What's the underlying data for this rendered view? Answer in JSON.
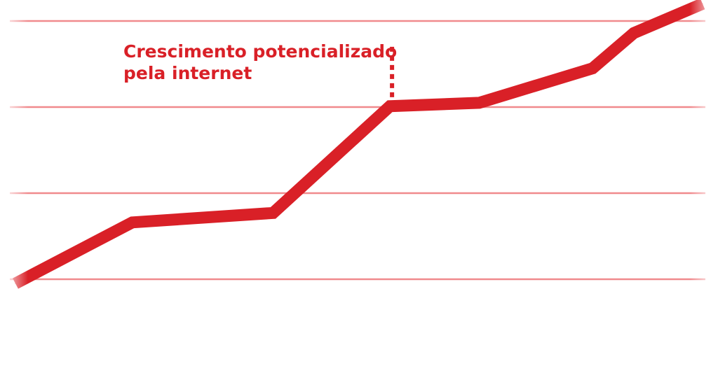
{
  "colors": {
    "line": "#d92027",
    "grid": "#f08a8d",
    "background": "#ffffff"
  },
  "chart_data": {
    "type": "line",
    "title": "",
    "xlabel": "",
    "ylabel": "",
    "grid": true,
    "xlim": [
      0,
      10
    ],
    "ylim": [
      0,
      4
    ],
    "gridlines_y": [
      1,
      2,
      3,
      4
    ],
    "series": [
      {
        "x": [
          0,
          1.7,
          3.75,
          5.45,
          6.75,
          8.4,
          9,
          10
        ],
        "y": [
          0.95,
          1.66,
          1.77,
          3.01,
          3.05,
          3.45,
          3.86,
          4.2
        ]
      }
    ],
    "annotation": {
      "text_lines": [
        "Crescimento potencializado",
        "pela internet"
      ],
      "x": 5.45,
      "y_top": 3.7,
      "y_bottom": 3.05
    }
  }
}
